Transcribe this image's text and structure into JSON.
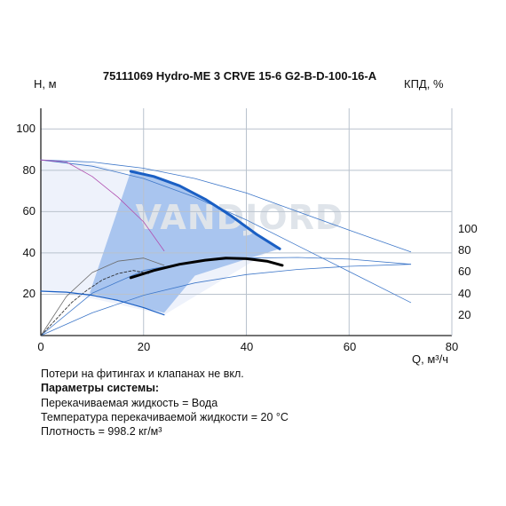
{
  "chart_data": {
    "type": "line",
    "title": "75111069 Hydro-ME 3 CRVE 15-6 G2-B-D-100-16-A",
    "ylabel": "H, м",
    "y2label": "КПД, %",
    "xlabel": "Q, м³/ч",
    "xlim": [
      0,
      80
    ],
    "ylim": [
      0,
      110
    ],
    "y2lim": [
      0,
      110
    ],
    "xticks": [
      "0",
      "20",
      "40",
      "60",
      "80"
    ],
    "yticks": [
      "20",
      "40",
      "60",
      "80",
      "100"
    ],
    "y2ticks": [
      "20",
      "40",
      "60",
      "80",
      "100"
    ],
    "grid": true,
    "watermark": "VANDJORD",
    "colors": {
      "max_curve": "#1a5fc4",
      "duty_curve": "#000000",
      "thin_curve": "#3f78c9",
      "fill_light": "#eef2fb",
      "fill_dark": "#a9c5ef",
      "magenta": "#b04fb0",
      "grid": "#b9c2cd"
    },
    "series": [
      {
        "role": "max-head-curve",
        "x": [
          17.5,
          22,
          27,
          32,
          37,
          42,
          46.5
        ],
        "y": [
          79.5,
          77,
          72.5,
          66,
          58,
          49,
          42
        ]
      },
      {
        "role": "duty-curve",
        "x": [
          17.5,
          22,
          27,
          32,
          36,
          40,
          44,
          47
        ],
        "y": [
          28,
          31.5,
          34.5,
          36.5,
          37.5,
          37.2,
          36,
          34
        ]
      },
      {
        "role": "min-head-curve",
        "x": [
          0,
          5,
          10,
          15,
          20,
          24
        ],
        "y": [
          21.5,
          21,
          19.5,
          17,
          13.5,
          10
        ]
      },
      {
        "role": "max-speed-curve",
        "x": [
          0,
          10,
          20,
          30,
          40,
          50,
          60,
          72
        ],
        "y": [
          85,
          84,
          81,
          76,
          69,
          60,
          51,
          40.5
        ]
      },
      {
        "role": "mid-speed-curve",
        "x": [
          0,
          10,
          20,
          30,
          40,
          50,
          60,
          72
        ],
        "y": [
          85,
          82,
          76,
          67,
          56,
          43.5,
          31,
          16
        ]
      },
      {
        "role": "efficiency-max",
        "x": [
          0,
          10,
          20,
          30,
          40,
          50,
          60,
          72
        ],
        "y": [
          0,
          20.5,
          31.5,
          36,
          37.5,
          37.8,
          37,
          34.5
        ]
      },
      {
        "role": "efficiency-min",
        "x": [
          0,
          5,
          10,
          15,
          20,
          24
        ],
        "y": [
          0,
          19,
          30.5,
          36,
          37.5,
          34
        ]
      },
      {
        "role": "power-curve",
        "x": [
          0,
          10,
          20,
          30,
          40,
          50,
          60,
          72
        ],
        "y": [
          0,
          11,
          19.5,
          25.5,
          29.5,
          32,
          33.5,
          34.5
        ]
      },
      {
        "role": "magenta-curve",
        "x": [
          0,
          5,
          10,
          15,
          20,
          24
        ],
        "y": [
          85,
          84,
          77,
          67,
          55,
          41
        ]
      },
      {
        "role": "dashed-curve",
        "x": [
          0,
          3,
          6,
          9,
          12,
          15,
          18,
          21
        ],
        "y": [
          0,
          8,
          16,
          22,
          27,
          30,
          31.5,
          30
        ]
      }
    ],
    "regions": [
      {
        "role": "operating-area-light",
        "points": [
          [
            0,
            85
          ],
          [
            8,
            84.5
          ],
          [
            15,
            80
          ],
          [
            22,
            73
          ],
          [
            30,
            62
          ],
          [
            38,
            50
          ],
          [
            44,
            40
          ],
          [
            24,
            10
          ],
          [
            10,
            18
          ],
          [
            0,
            21.5
          ]
        ]
      },
      {
        "role": "operating-area-dark",
        "points": [
          [
            17.5,
            79.5
          ],
          [
            22,
            77
          ],
          [
            27,
            72.5
          ],
          [
            32,
            66
          ],
          [
            37,
            58
          ],
          [
            42,
            49
          ],
          [
            46.5,
            42
          ],
          [
            40,
            37
          ],
          [
            30,
            29
          ],
          [
            24,
            11
          ],
          [
            20,
            13.5
          ],
          [
            9.5,
            20.5
          ]
        ]
      }
    ]
  },
  "notes": {
    "line1": "Потери на фитингах и клапанах не вкл.",
    "header": "Параметры системы:",
    "line2": "Перекачиваемая жидкость = Вода",
    "line3": "Температура перекачиваемой жидкости = 20 °C",
    "line4": "Плотность = 998.2 кг/м³"
  }
}
